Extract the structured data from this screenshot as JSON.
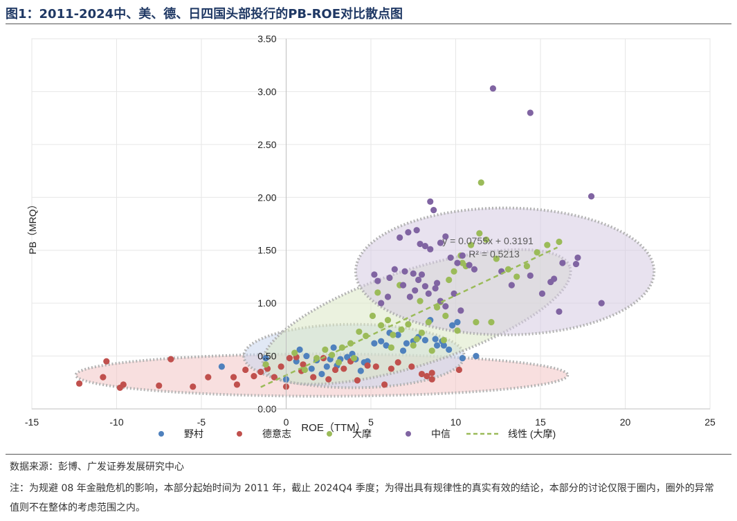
{
  "title": "图1：2011-2024中、美、德、日四国头部投行的PB-ROE对比散点图",
  "source": "数据来源：彭博、广发证券发展研究中心",
  "note": "注：为规避 08 年金融危机的影响，本部分起始时间为 2011 年，截止 2024Q4 季度；为得出具有规律性的真实有效的结论，本部分的讨论仅限于圈内，圈外的异常值则不在整体的考虑范围之内。",
  "chart_data": {
    "type": "scatter",
    "xlabel": "ROE（TTM）",
    "ylabel": "PB（MRQ）",
    "xlim": [
      -15,
      25
    ],
    "ylim": [
      0,
      3.5
    ],
    "xticks": [
      "-15",
      "-10",
      "-5",
      "0",
      "5",
      "10",
      "15",
      "20",
      "25"
    ],
    "yticks": [
      "0.00",
      "0.50",
      "1.00",
      "1.50",
      "2.00",
      "2.50",
      "3.00",
      "3.50"
    ],
    "grid": true,
    "legend_position": "bottom",
    "trendline": {
      "name": "线性 (大摩)",
      "slope": 0.0755,
      "intercept": 0.3191,
      "x_range": [
        -1.5,
        16
      ],
      "equation": "y = 0.0755x + 0.3191",
      "r2": "R² = 0.5213",
      "color": "#9bbb59"
    },
    "ellipses": [
      {
        "series": "德意志",
        "center": [
          2.1,
          0.32
        ],
        "rx": 14.5,
        "ry": 0.2,
        "angle_deg": 0,
        "fill": "#f2c4c4"
      },
      {
        "series": "野村",
        "center": [
          4,
          0.5
        ],
        "rx": 6.5,
        "ry": 0.3,
        "angle_deg": 0,
        "fill": "#c9d6ec"
      },
      {
        "series": "大摩",
        "center": [
          7.7,
          0.87
        ],
        "rx": 9.5,
        "ry": 0.45,
        "angle_deg": 18,
        "fill": "#dbe8c5"
      },
      {
        "series": "中信",
        "center": [
          12.9,
          1.3
        ],
        "rx": 8.8,
        "ry": 0.6,
        "angle_deg": 0,
        "fill": "#d5cbe2"
      }
    ],
    "series": [
      {
        "name": "野村",
        "color": "#4f81bd",
        "points": [
          [
            -3.8,
            0.4
          ],
          [
            -1.2,
            0.48
          ],
          [
            0,
            0.28
          ],
          [
            0.6,
            0.45
          ],
          [
            1.2,
            0.5
          ],
          [
            1.8,
            0.46
          ],
          [
            2.4,
            0.4
          ],
          [
            2.8,
            0.58
          ],
          [
            3.2,
            0.47
          ],
          [
            3.6,
            0.49
          ],
          [
            4.1,
            0.47
          ],
          [
            4.8,
            0.45
          ],
          [
            5.2,
            0.62
          ],
          [
            5.6,
            0.64
          ],
          [
            6.1,
            0.72
          ],
          [
            6.6,
            0.7
          ],
          [
            7.1,
            0.62
          ],
          [
            7.5,
            0.64
          ],
          [
            8.2,
            0.65
          ],
          [
            8.8,
            0.66
          ],
          [
            9.3,
            0.6
          ],
          [
            9.6,
            0.56
          ],
          [
            10.4,
            0.48
          ],
          [
            11.2,
            0.5
          ],
          [
            3.9,
            0.52
          ],
          [
            4.4,
            0.36
          ],
          [
            2.1,
            0.33
          ],
          [
            6.9,
            0.55
          ],
          [
            7.8,
            0.68
          ],
          [
            10.1,
            0.82
          ],
          [
            9.8,
            0.79
          ],
          [
            8.5,
            0.84
          ],
          [
            5.9,
            0.6
          ],
          [
            1.5,
            0.38
          ],
          [
            0.8,
            0.56
          ],
          [
            4.6,
            0.44
          ],
          [
            3.0,
            0.41
          ],
          [
            2.6,
            0.47
          ],
          [
            8.9,
            0.6
          ],
          [
            9.2,
            0.64
          ]
        ]
      },
      {
        "name": "德意志",
        "color": "#c0504d",
        "points": [
          [
            -12.2,
            0.24
          ],
          [
            -10.6,
            0.45
          ],
          [
            -10.8,
            0.3
          ],
          [
            -9.8,
            0.2
          ],
          [
            -9.6,
            0.23
          ],
          [
            -7.5,
            0.22
          ],
          [
            -6.8,
            0.47
          ],
          [
            -5.5,
            0.21
          ],
          [
            -4.6,
            0.3
          ],
          [
            -3.1,
            0.3
          ],
          [
            -2.9,
            0.23
          ],
          [
            -2.4,
            0.37
          ],
          [
            -1.9,
            0.31
          ],
          [
            -1.5,
            0.35
          ],
          [
            -1.1,
            0.38
          ],
          [
            -0.7,
            0.3
          ],
          [
            0,
            0.21
          ],
          [
            0.2,
            0.48
          ],
          [
            0.6,
            0.49
          ],
          [
            1.0,
            0.42
          ],
          [
            1.6,
            0.3
          ],
          [
            2.2,
            0.48
          ],
          [
            2.9,
            0.37
          ],
          [
            3.4,
            0.38
          ],
          [
            4.2,
            0.27
          ],
          [
            4.8,
            0.41
          ],
          [
            5.3,
            0.4
          ],
          [
            5.8,
            0.23
          ],
          [
            6.6,
            0.44
          ],
          [
            7.4,
            0.4
          ],
          [
            8.0,
            0.33
          ],
          [
            8.3,
            0.31
          ],
          [
            8.6,
            0.34
          ],
          [
            8.6,
            0.28
          ],
          [
            10.2,
            0.37
          ],
          [
            -0.3,
            0.4
          ],
          [
            0.9,
            0.36
          ],
          [
            3.8,
            0.45
          ],
          [
            6.2,
            0.38
          ],
          [
            2.5,
            0.28
          ]
        ]
      },
      {
        "name": "大摩",
        "color": "#9bbb59",
        "points": [
          [
            -1.2,
            0.42
          ],
          [
            0.5,
            0.53
          ],
          [
            1.8,
            0.48
          ],
          [
            2.3,
            0.56
          ],
          [
            3.1,
            0.44
          ],
          [
            3.8,
            0.62
          ],
          [
            4.3,
            0.73
          ],
          [
            4.7,
            0.69
          ],
          [
            5.1,
            0.88
          ],
          [
            5.6,
            0.79
          ],
          [
            6.0,
            0.84
          ],
          [
            6.3,
            0.7
          ],
          [
            6.8,
            0.75
          ],
          [
            7.2,
            0.8
          ],
          [
            7.5,
            0.6
          ],
          [
            8.0,
            0.72
          ],
          [
            8.4,
            0.82
          ],
          [
            8.9,
            0.96
          ],
          [
            9.1,
            1.01
          ],
          [
            9.6,
            1.22
          ],
          [
            9.9,
            1.3
          ],
          [
            10.3,
            1.45
          ],
          [
            10.6,
            1.35
          ],
          [
            10.9,
            1.55
          ],
          [
            11.4,
            1.66
          ],
          [
            11.8,
            1.6
          ],
          [
            12.4,
            1.42
          ],
          [
            13.1,
            1.32
          ],
          [
            13.6,
            1.25
          ],
          [
            14.2,
            1.35
          ],
          [
            14.8,
            1.48
          ],
          [
            15.4,
            1.55
          ],
          [
            16.1,
            1.58
          ],
          [
            11.5,
            2.14
          ],
          [
            5.4,
            1.1
          ],
          [
            6.7,
            1.17
          ],
          [
            7.9,
            1.02
          ],
          [
            9.4,
            0.88
          ],
          [
            10.1,
            0.74
          ],
          [
            11.2,
            0.82
          ],
          [
            12.1,
            0.82
          ],
          [
            3.3,
            0.58
          ],
          [
            2.7,
            0.51
          ],
          [
            1.1,
            0.37
          ],
          [
            8.6,
            0.55
          ],
          [
            9.3,
            0.65
          ],
          [
            4.0,
            0.48
          ],
          [
            6.2,
            0.58
          ],
          [
            7.7,
            0.66
          ],
          [
            10.4,
            1.38
          ]
        ]
      },
      {
        "name": "中信",
        "color": "#8064a2",
        "points": [
          [
            12.2,
            3.03
          ],
          [
            14.4,
            2.8
          ],
          [
            18.0,
            2.01
          ],
          [
            8.5,
            1.96
          ],
          [
            8.7,
            1.88
          ],
          [
            6.7,
            1.62
          ],
          [
            7.2,
            1.67
          ],
          [
            7.7,
            1.69
          ],
          [
            7.9,
            1.56
          ],
          [
            8.2,
            1.54
          ],
          [
            8.5,
            1.51
          ],
          [
            9.1,
            1.57
          ],
          [
            9.4,
            1.63
          ],
          [
            9.7,
            1.43
          ],
          [
            10.1,
            1.38
          ],
          [
            10.4,
            1.45
          ],
          [
            10.8,
            1.36
          ],
          [
            11.1,
            1.32
          ],
          [
            5.2,
            1.27
          ],
          [
            5.4,
            1.21
          ],
          [
            6.1,
            1.24
          ],
          [
            6.4,
            1.32
          ],
          [
            6.9,
            1.17
          ],
          [
            7.3,
            1.06
          ],
          [
            7.6,
            1.12
          ],
          [
            7.8,
            1.22
          ],
          [
            8.2,
            1.16
          ],
          [
            8.4,
            1.09
          ],
          [
            8.8,
            1.14
          ],
          [
            9.1,
            1.02
          ],
          [
            9.4,
            0.97
          ],
          [
            10.3,
            0.93
          ],
          [
            14.4,
            1.26
          ],
          [
            15.1,
            1.09
          ],
          [
            15.6,
            1.2
          ],
          [
            15.8,
            1.23
          ],
          [
            16.3,
            1.38
          ],
          [
            17.2,
            1.43
          ],
          [
            17.1,
            1.37
          ],
          [
            18.6,
            1.0
          ],
          [
            16.1,
            0.92
          ],
          [
            12.7,
            1.3
          ],
          [
            13.3,
            1.17
          ],
          [
            6.0,
            1.06
          ],
          [
            7.0,
            1.3
          ],
          [
            7.5,
            1.28
          ],
          [
            8.0,
            1.27
          ],
          [
            8.9,
            1.19
          ],
          [
            5.6,
            1.0
          ],
          [
            9.9,
            1.09
          ]
        ]
      }
    ]
  }
}
